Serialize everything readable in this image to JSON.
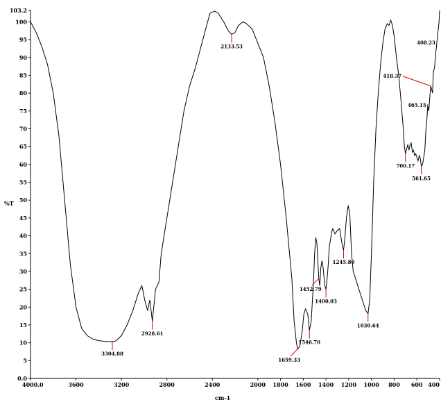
{
  "chart_data": {
    "type": "line",
    "title": "",
    "xlabel": "cm-1",
    "ylabel": "%T",
    "xlim": [
      4000,
      400
    ],
    "ylim": [
      0,
      103.2
    ],
    "x_ticks": [
      {
        "value": 4000,
        "label": "4000.0"
      },
      {
        "value": 3600,
        "label": "3600"
      },
      {
        "value": 3200,
        "label": "3200"
      },
      {
        "value": 2800,
        "label": "2800"
      },
      {
        "value": 2400,
        "label": "2400"
      },
      {
        "value": 2000,
        "label": "2000"
      },
      {
        "value": 1800,
        "label": "1800"
      },
      {
        "value": 1600,
        "label": "1600"
      },
      {
        "value": 1400,
        "label": "1400"
      },
      {
        "value": 1200,
        "label": "1200"
      },
      {
        "value": 1000,
        "label": "1000"
      },
      {
        "value": 800,
        "label": "800"
      },
      {
        "value": 600,
        "label": "600"
      },
      {
        "value": 400,
        "label": "400"
      }
    ],
    "y_ticks": [
      {
        "value": 0,
        "label": "0.0"
      },
      {
        "value": 5,
        "label": "5"
      },
      {
        "value": 10,
        "label": "10"
      },
      {
        "value": 15,
        "label": "15"
      },
      {
        "value": 20,
        "label": "20"
      },
      {
        "value": 25,
        "label": "25"
      },
      {
        "value": 30,
        "label": "30"
      },
      {
        "value": 35,
        "label": "35"
      },
      {
        "value": 40,
        "label": "40"
      },
      {
        "value": 45,
        "label": "45"
      },
      {
        "value": 50,
        "label": "50"
      },
      {
        "value": 55,
        "label": "55"
      },
      {
        "value": 60,
        "label": "60"
      },
      {
        "value": 65,
        "label": "65"
      },
      {
        "value": 70,
        "label": "70"
      },
      {
        "value": 75,
        "label": "75"
      },
      {
        "value": 80,
        "label": "80"
      },
      {
        "value": 85,
        "label": "85"
      },
      {
        "value": 90,
        "label": "90"
      },
      {
        "value": 95,
        "label": "95"
      },
      {
        "value": 100,
        "label": "100"
      },
      {
        "value": 103.2,
        "label": "103.2"
      }
    ],
    "series": [
      {
        "color": "#000000",
        "points": [
          [
            4000,
            100
          ],
          [
            3950,
            97
          ],
          [
            3900,
            93
          ],
          [
            3850,
            88
          ],
          [
            3800,
            80
          ],
          [
            3750,
            68
          ],
          [
            3700,
            50
          ],
          [
            3650,
            32
          ],
          [
            3600,
            20
          ],
          [
            3550,
            14
          ],
          [
            3500,
            12
          ],
          [
            3450,
            11
          ],
          [
            3400,
            10.6
          ],
          [
            3350,
            10.4
          ],
          [
            3300,
            10.3
          ],
          [
            3250,
            10.5
          ],
          [
            3200,
            12
          ],
          [
            3150,
            15
          ],
          [
            3100,
            19
          ],
          [
            3050,
            24
          ],
          [
            3020,
            26
          ],
          [
            2995,
            22
          ],
          [
            2970,
            19
          ],
          [
            2950,
            22
          ],
          [
            2928,
            16
          ],
          [
            2900,
            25
          ],
          [
            2870,
            27
          ],
          [
            2850,
            35
          ],
          [
            2800,
            45
          ],
          [
            2750,
            55
          ],
          [
            2700,
            65
          ],
          [
            2650,
            75
          ],
          [
            2600,
            82
          ],
          [
            2550,
            87
          ],
          [
            2500,
            93
          ],
          [
            2450,
            99
          ],
          [
            2420,
            102.4
          ],
          [
            2380,
            103
          ],
          [
            2350,
            102.5
          ],
          [
            2300,
            100
          ],
          [
            2260,
            97.5
          ],
          [
            2230,
            96.5
          ],
          [
            2200,
            97
          ],
          [
            2170,
            99
          ],
          [
            2130,
            100
          ],
          [
            2100,
            99.5
          ],
          [
            2050,
            98
          ],
          [
            2000,
            94
          ],
          [
            1950,
            90
          ],
          [
            1900,
            82
          ],
          [
            1850,
            72
          ],
          [
            1800,
            60
          ],
          [
            1750,
            45
          ],
          [
            1700,
            28
          ],
          [
            1680,
            16
          ],
          [
            1660,
            10
          ],
          [
            1650,
            8.2
          ],
          [
            1630,
            9
          ],
          [
            1610,
            13
          ],
          [
            1595,
            18
          ],
          [
            1580,
            19.5
          ],
          [
            1560,
            18
          ],
          [
            1546,
            13.5
          ],
          [
            1530,
            16
          ],
          [
            1510,
            27
          ],
          [
            1500,
            35
          ],
          [
            1490,
            39.5
          ],
          [
            1480,
            38
          ],
          [
            1470,
            32
          ],
          [
            1463,
            28
          ],
          [
            1455,
            26
          ],
          [
            1445,
            31
          ],
          [
            1435,
            33
          ],
          [
            1425,
            31
          ],
          [
            1410,
            26
          ],
          [
            1400,
            25
          ],
          [
            1390,
            28
          ],
          [
            1380,
            32
          ],
          [
            1370,
            37
          ],
          [
            1360,
            39
          ],
          [
            1350,
            41
          ],
          [
            1340,
            42
          ],
          [
            1320,
            40.5
          ],
          [
            1300,
            41.5
          ],
          [
            1280,
            42
          ],
          [
            1270,
            40
          ],
          [
            1255,
            37
          ],
          [
            1245,
            36
          ],
          [
            1235,
            39
          ],
          [
            1220,
            45
          ],
          [
            1205,
            48.5
          ],
          [
            1190,
            46
          ],
          [
            1175,
            35
          ],
          [
            1160,
            30
          ],
          [
            1145,
            28.5
          ],
          [
            1130,
            27
          ],
          [
            1110,
            25
          ],
          [
            1090,
            23
          ],
          [
            1070,
            21
          ],
          [
            1050,
            19
          ],
          [
            1030,
            18.2
          ],
          [
            1015,
            22
          ],
          [
            1000,
            35
          ],
          [
            980,
            55
          ],
          [
            960,
            70
          ],
          [
            940,
            80
          ],
          [
            920,
            88
          ],
          [
            900,
            94
          ],
          [
            880,
            98
          ],
          [
            860,
            99.5
          ],
          [
            845,
            99
          ],
          [
            830,
            100.5
          ],
          [
            815,
            99
          ],
          [
            800,
            96
          ],
          [
            780,
            90
          ],
          [
            760,
            85
          ],
          [
            740,
            78
          ],
          [
            720,
            70
          ],
          [
            710,
            65
          ],
          [
            700,
            63
          ],
          [
            690,
            64.5
          ],
          [
            680,
            65.5
          ],
          [
            670,
            64
          ],
          [
            660,
            65.5
          ],
          [
            650,
            66
          ],
          [
            640,
            63.5
          ],
          [
            630,
            64
          ],
          [
            620,
            62.5
          ],
          [
            610,
            63
          ],
          [
            600,
            62
          ],
          [
            590,
            61
          ],
          [
            578,
            62.5
          ],
          [
            570,
            61.8
          ],
          [
            561,
            59.5
          ],
          [
            550,
            60
          ],
          [
            540,
            62
          ],
          [
            530,
            64
          ],
          [
            520,
            70
          ],
          [
            510,
            73.5
          ],
          [
            505,
            76.5
          ],
          [
            495,
            75
          ],
          [
            485,
            79.5
          ],
          [
            478,
            82
          ],
          [
            470,
            81
          ],
          [
            462,
            80
          ],
          [
            455,
            86
          ],
          [
            445,
            87
          ],
          [
            435,
            91
          ],
          [
            425,
            94
          ],
          [
            415,
            97
          ],
          [
            405,
            100
          ],
          [
            400,
            103.2
          ]
        ]
      }
    ],
    "peaks": [
      {
        "label": "3304.88",
        "x": 3280,
        "y": 10.3,
        "side": "below"
      },
      {
        "label": "2928.61",
        "x": 2928,
        "y": 16,
        "side": "below"
      },
      {
        "label": "2133.53",
        "x": 2230,
        "y": 96.5,
        "side": "below"
      },
      {
        "label": "1659.33",
        "x": 1650,
        "y": 8.2,
        "side": "below-left"
      },
      {
        "label": "1546.70",
        "x": 1546,
        "y": 13.5,
        "side": "below"
      },
      {
        "label": "1452.79",
        "x": 1463,
        "y": 28,
        "side": "below-left"
      },
      {
        "label": "1400.03",
        "x": 1400,
        "y": 25,
        "side": "below"
      },
      {
        "label": "1245.80",
        "x": 1245,
        "y": 36,
        "side": "below"
      },
      {
        "label": "1030.64",
        "x": 1030,
        "y": 18.2,
        "side": "below"
      },
      {
        "label": "700.17",
        "x": 700,
        "y": 63,
        "side": "below"
      },
      {
        "label": "561.65",
        "x": 561,
        "y": 59.5,
        "side": "below"
      },
      {
        "label": "465.15",
        "x": 505,
        "y": 76.5,
        "side": "left"
      },
      {
        "label": "418.37",
        "x": 478,
        "y": 82,
        "side": "left-far"
      },
      {
        "label": "408.23",
        "x": 425,
        "y": 94,
        "side": "left"
      }
    ]
  }
}
